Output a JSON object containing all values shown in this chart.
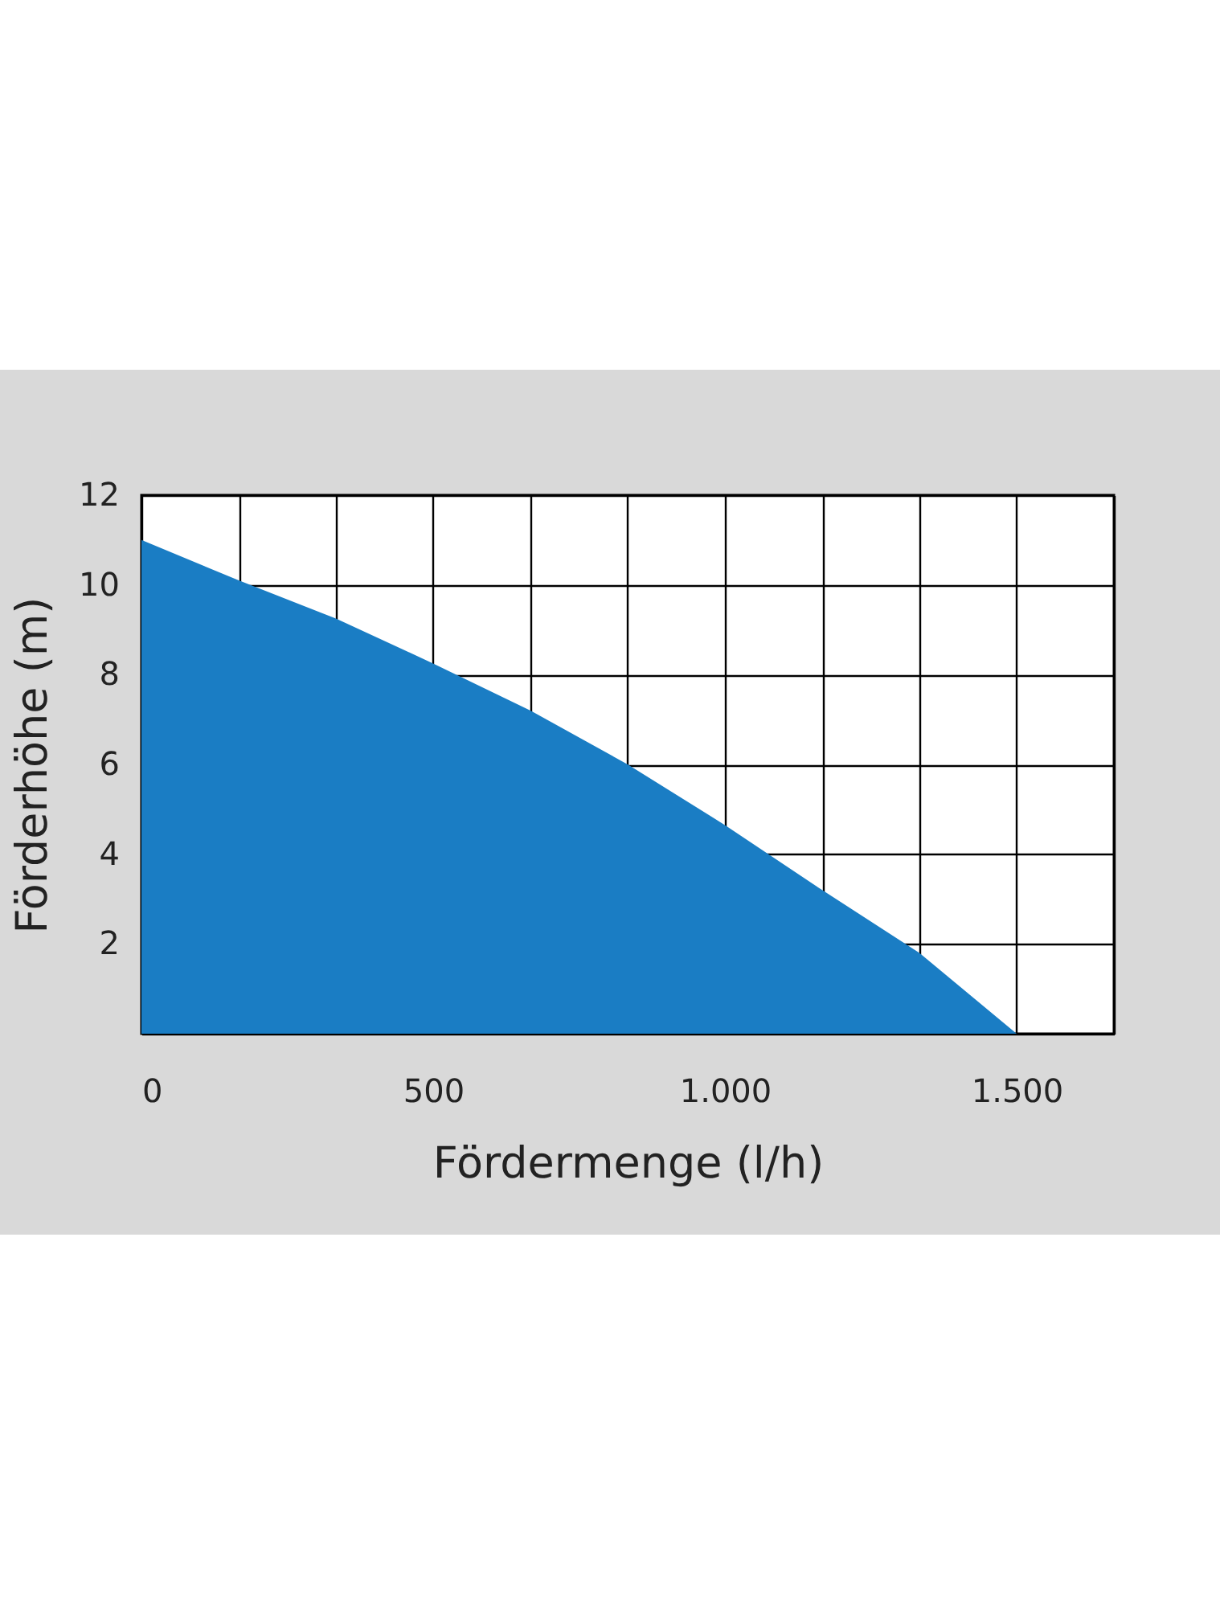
{
  "chart_data": {
    "type": "area",
    "xlabel": "Fördermenge (l/h)",
    "ylabel": "Förderhöhe (m)",
    "x": [
      0,
      166.7,
      333.3,
      500,
      666.7,
      833.3,
      1000,
      1166.7,
      1333.3,
      1500
    ],
    "series": [
      {
        "color": "#1a7dc4",
        "values": [
          11.0,
          10.1,
          9.25,
          8.25,
          7.2,
          6.0,
          4.65,
          3.2,
          1.8,
          0
        ]
      }
    ],
    "xlim": [
      0,
      1666.7
    ],
    "xticks": [
      0,
      {
        "value": 166.7,
        "label": null
      },
      {
        "value": 333.3,
        "label": null
      },
      500,
      {
        "value": 666.7,
        "label": null
      },
      {
        "value": 833.3,
        "label": null
      },
      {
        "value": 1000,
        "label": "1.000"
      },
      {
        "value": 1166.7,
        "label": null
      },
      {
        "value": 1333.3,
        "label": null
      },
      {
        "value": 1500,
        "label": "1.500"
      },
      {
        "value": 1666.7,
        "label": null
      }
    ],
    "ylim": [
      0,
      12
    ],
    "yticks": [
      {
        "value": 0,
        "label": null
      },
      2,
      4,
      6,
      8,
      10,
      12
    ],
    "grid": true
  }
}
